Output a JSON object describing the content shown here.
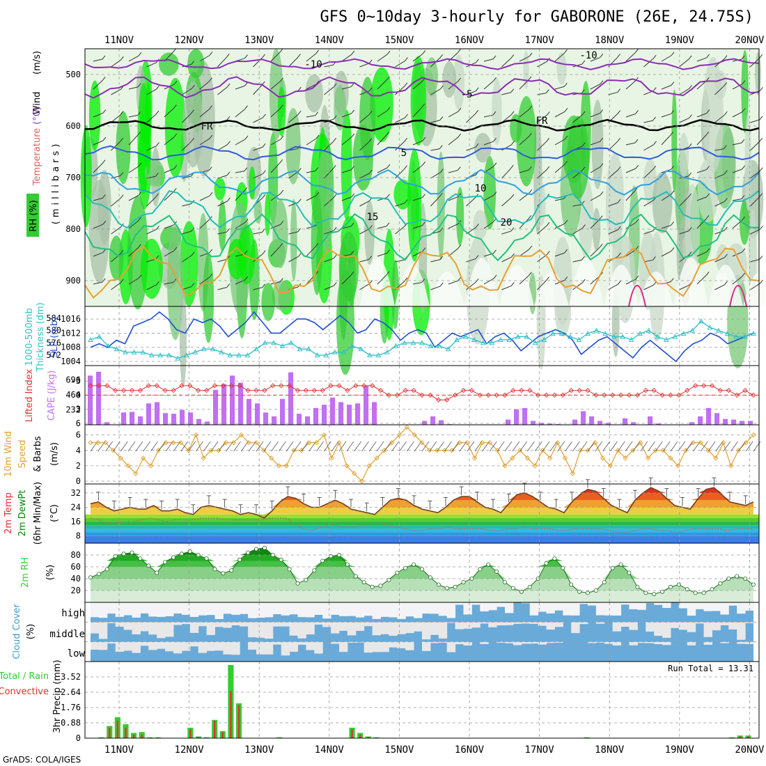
{
  "title": "GFS 0~10day 3-hourly for GABORONE (26E, 24.75S)",
  "credit": "GrADS: COLA/IGES",
  "dates": [
    "11NOV",
    "12NOV",
    "13NOV",
    "14NOV",
    "15NOV",
    "16NOV",
    "17NOV",
    "18NOV",
    "19NOV",
    "20NOV"
  ],
  "colors": {
    "rh_green": "#33cc33",
    "rh_bright": "#00ee00",
    "slp": "#1f4fd0",
    "thickness": "#33c0c8",
    "lifted_index": "#e0302e",
    "cape": "#c070f0",
    "wind_speed": "#e0a030",
    "rain_total": "#33cc33",
    "rain_convective": "#e8302e",
    "cloud": "#6aaad8",
    "cloud_clear": "#e8e8e8"
  },
  "panels": {
    "upper": {
      "label_wind": "Wind",
      "label_wind_unit": "(m/s)",
      "label_temp": "Temperature",
      "label_temp_unit": "(°C)",
      "label_rh": "RH (%)",
      "label_mb": "(millibars)",
      "contour_labels": {
        "m10a": "-10",
        "m10b": "-10",
        "m5": "-5",
        "fr1": "FR",
        "fr2": "FR",
        "p5": "5",
        "p10": "10",
        "p15": "15",
        "p20": "20"
      }
    },
    "slp": {
      "label1": "1000-500mb",
      "label2": "Thickness (dm)",
      "label3": "SLP (mb)"
    },
    "li": {
      "label1": "Lifted Index",
      "label2": "CAPE (J/kg)"
    },
    "wind10": {
      "label1": "10m Wind",
      "label2": "Speed",
      "label3": "& Barbs",
      "unit": "(m/s)"
    },
    "temp2m": {
      "label1": "2m Temp",
      "label2": "2m DewPt",
      "label3": "(6hr Min/Max)",
      "unit": "(°C)"
    },
    "rh2m": {
      "label1": "2m RH",
      "unit": "(%)"
    },
    "cloud": {
      "label1": "Cloud Cover",
      "unit": "(%)",
      "high": "high",
      "middle": "middle",
      "low": "low"
    },
    "precip": {
      "label1": "Total / Rain",
      "label2": "Convective",
      "axis": "3hr Precip (mm)",
      "run_total": "Run Total = 13.31"
    }
  },
  "chart_data": [
    {
      "type": "heatmap",
      "name": "Upper-air cross section",
      "y_axis": "pressure (mb)",
      "ylim": [
        950,
        450
      ],
      "yticks": [
        500,
        600,
        700,
        800,
        900
      ],
      "x": "11NOV-20NOV",
      "fields": [
        "RH (%)",
        "Temperature (°C)",
        "Wind (m/s)"
      ],
      "contours": [
        "-10",
        "-5",
        "FR",
        "5",
        "10",
        "15",
        "20"
      ]
    },
    {
      "type": "line",
      "name": "SLP / Thickness",
      "ylim_left": [
        1004,
        1018
      ],
      "yticks_left": [
        1004,
        1008,
        1012,
        1016
      ],
      "ylim_right": [
        570,
        586
      ],
      "yticks_right": [
        572,
        576,
        580,
        584
      ],
      "series": [
        {
          "name": "SLP (mb)",
          "values": [
            1008,
            1009,
            1008,
            1010,
            1009,
            1014,
            1015,
            1016,
            1018,
            1016,
            1013,
            1012,
            1016,
            1015,
            1016,
            1014,
            1011,
            1013,
            1015,
            1018,
            1015,
            1012,
            1012,
            1014,
            1016,
            1016,
            1015,
            1013,
            1015,
            1017,
            1015,
            1012,
            1013,
            1016,
            1015,
            1013,
            1010,
            1012,
            1013,
            1012,
            1008,
            1010,
            1012,
            1011,
            1012,
            1013,
            1009,
            1011,
            1012,
            1010,
            1007,
            1009,
            1011,
            1012,
            1013,
            1012,
            1010,
            1006,
            1008,
            1010,
            1011,
            1009,
            1007,
            1005,
            1008,
            1010,
            1008,
            1006,
            1004,
            1007,
            1009,
            1010,
            1012,
            1011,
            1009,
            1010,
            1011,
            1012
          ]
        },
        {
          "name": "1000-500mb Thickness (dm)",
          "values": [
            577,
            578,
            575,
            574,
            573,
            573,
            573,
            572,
            572,
            572,
            571,
            572,
            573,
            574,
            574,
            573,
            572,
            572,
            572,
            574,
            576,
            576,
            575,
            576,
            574,
            574,
            572,
            572,
            573,
            573,
            575,
            574,
            572,
            572,
            573,
            575,
            576,
            576,
            576,
            575,
            575,
            574,
            577,
            578,
            577,
            576,
            576,
            577,
            577,
            578,
            578,
            576,
            577,
            579,
            579,
            578,
            577,
            579,
            580,
            579,
            578,
            578,
            577,
            579,
            580,
            578,
            577,
            578,
            579,
            580,
            583,
            581,
            580,
            579,
            578,
            578,
            579
          ]
        }
      ]
    },
    {
      "type": "bar",
      "name": "Lifted Index / CAPE",
      "ylim_li": [
        6,
        -6
      ],
      "yticks_li": [
        -3,
        0,
        3,
        6
      ],
      "yticks_cape": [
        232,
        464,
        696
      ],
      "series": [
        {
          "name": "CAPE (J/kg)",
          "values": [
            760,
            820,
            40,
            0,
            190,
            200,
            130,
            330,
            350,
            180,
            170,
            230,
            190,
            90,
            50,
            540,
            630,
            760,
            650,
            400,
            330,
            190,
            130,
            400,
            810,
            170,
            130,
            260,
            310,
            420,
            350,
            310,
            330,
            600,
            350,
            0,
            0,
            0,
            0,
            0,
            60,
            130,
            70,
            10,
            0,
            0,
            0,
            0,
            0,
            0,
            80,
            240,
            260,
            60,
            30,
            20,
            10,
            0,
            80,
            210,
            130,
            60,
            30,
            0,
            100,
            40,
            0,
            130,
            20,
            0,
            0,
            0,
            40,
            130,
            260,
            180,
            90,
            80,
            60,
            60
          ]
        },
        {
          "name": "Lifted Index",
          "values": [
            -2,
            -2,
            -2,
            -1,
            -1,
            -1,
            -1,
            -2,
            -2,
            -1,
            -1,
            -2,
            -2,
            -1,
            -1,
            -2,
            -2,
            -2,
            -2,
            -1,
            -1,
            -1,
            -2,
            -2,
            -2,
            -1,
            -1,
            -1,
            -1,
            -2,
            -2,
            -1,
            -2,
            -2,
            -2,
            -1,
            0,
            0,
            -1,
            -1,
            0,
            0,
            1,
            1,
            0,
            -1,
            -1,
            0,
            0,
            0,
            0,
            -1,
            -1,
            -1,
            0,
            0,
            0,
            0,
            -1,
            -1,
            -1,
            0,
            0,
            0,
            0,
            0,
            0,
            -1,
            -1,
            0,
            0,
            0,
            -1,
            -2,
            -2,
            -2,
            -1,
            -1,
            0,
            -1,
            0
          ]
        }
      ]
    },
    {
      "type": "line",
      "name": "10m Wind Speed",
      "ylim": [
        0,
        7
      ],
      "yticks": [
        0,
        2,
        4,
        6
      ],
      "series": [
        {
          "name": "Speed (m/s)",
          "values": [
            5,
            5,
            5,
            4,
            3,
            2,
            1,
            3,
            2,
            4,
            5,
            5,
            5,
            4,
            6,
            3,
            4,
            4,
            5,
            5,
            6,
            5,
            5,
            4,
            3,
            2,
            2,
            4,
            4,
            5,
            5,
            6,
            3,
            5,
            2,
            1,
            0,
            2,
            3,
            4,
            5,
            6,
            7,
            6,
            5,
            4,
            4,
            4,
            4,
            5,
            5,
            3,
            5,
            5,
            4,
            2,
            3,
            4,
            3,
            2,
            4,
            3,
            5,
            3,
            1,
            4,
            4,
            5,
            3,
            2,
            4,
            3,
            4,
            5,
            3,
            4,
            4,
            3,
            2,
            4,
            5,
            5,
            4,
            3,
            5,
            2,
            4,
            5,
            6
          ]
        }
      ]
    },
    {
      "type": "area",
      "name": "2m Temp / DewPt",
      "ylim": [
        4,
        37
      ],
      "yticks": [
        8,
        16,
        24,
        32
      ],
      "series": [
        {
          "name": "2m Temp (°C)",
          "values": [
            26,
            27,
            24,
            22,
            23,
            24,
            23,
            23,
            25,
            22,
            22,
            23,
            21,
            20,
            24,
            25,
            24,
            23,
            22,
            20,
            21,
            20,
            18,
            22,
            27,
            30,
            29,
            26,
            24,
            24,
            26,
            28,
            26,
            23,
            22,
            21,
            20,
            24,
            28,
            29,
            28,
            25,
            23,
            22,
            21,
            24,
            28,
            30,
            30,
            27,
            24,
            23,
            21,
            26,
            31,
            32,
            30,
            27,
            24,
            23,
            21,
            27,
            31,
            34,
            33,
            29,
            25,
            23,
            21,
            28,
            32,
            35,
            33,
            29,
            25,
            24,
            23,
            29,
            34,
            35,
            31,
            27,
            26,
            25,
            27
          ]
        },
        {
          "name": "2m DewPt (°C)",
          "values": [
            18,
            17,
            15,
            15,
            16,
            16,
            17,
            18,
            17,
            16,
            17,
            17,
            17,
            18,
            18,
            18,
            17,
            17,
            17,
            17,
            17,
            18,
            18,
            18,
            15,
            12,
            11,
            13,
            14,
            14,
            13,
            13,
            14,
            14,
            14,
            14,
            13,
            12,
            11,
            11,
            12,
            12,
            13,
            12,
            12,
            12,
            12,
            11,
            11,
            12,
            12,
            13,
            12,
            12,
            12,
            11,
            11,
            12,
            12,
            12,
            12,
            11,
            10,
            10,
            11,
            12,
            12,
            11,
            11,
            10,
            11,
            12,
            12,
            12,
            12,
            11,
            12,
            12,
            12
          ]
        }
      ]
    },
    {
      "type": "area",
      "name": "2m RH",
      "ylim": [
        0,
        100
      ],
      "yticks": [
        20,
        40,
        60,
        80
      ],
      "series": [
        {
          "name": "2m RH (%)",
          "values": [
            42,
            48,
            56,
            78,
            82,
            84,
            74,
            62,
            50,
            68,
            76,
            82,
            86,
            80,
            74,
            56,
            49,
            54,
            72,
            84,
            90,
            92,
            80,
            72,
            56,
            32,
            38,
            54,
            70,
            78,
            80,
            64,
            44,
            34,
            26,
            28,
            38,
            50,
            58,
            64,
            56,
            42,
            30,
            24,
            26,
            34,
            40,
            56,
            64,
            52,
            34,
            24,
            18,
            26,
            40,
            66,
            74,
            58,
            30,
            18,
            16,
            20,
            34,
            58,
            64,
            50,
            26,
            16,
            14,
            18,
            26,
            30,
            22,
            16,
            16,
            22,
            32,
            40,
            44,
            40,
            30
          ]
        }
      ]
    },
    {
      "type": "heatmap",
      "name": "Cloud Cover",
      "rows": [
        "high",
        "middle",
        "low"
      ],
      "ylim": [
        0,
        100
      ]
    },
    {
      "type": "bar",
      "name": "3hr Precip",
      "ylim": [
        0,
        4.4
      ],
      "yticks": [
        0,
        0.88,
        1.76,
        2.64,
        3.52
      ],
      "run_total": 13.31,
      "series": [
        {
          "name": "Total",
          "values": [
            0,
            0.05,
            0.7,
            1.2,
            0.8,
            0.3,
            0.35,
            0.05,
            0.05,
            0,
            0,
            0,
            0.6,
            0.1,
            0.05,
            1.05,
            0.4,
            4.2,
            2.0,
            0,
            0,
            0,
            0,
            0.05,
            0,
            0,
            0,
            0,
            0,
            0,
            0,
            0,
            0.6,
            0.3,
            0.1,
            0.05,
            0,
            0,
            0,
            0,
            0,
            0,
            0,
            0,
            0,
            0,
            0,
            0,
            0,
            0,
            0,
            0,
            0,
            0,
            0,
            0,
            0,
            0,
            0,
            0,
            0,
            0.05,
            0,
            0,
            0,
            0,
            0,
            0,
            0,
            0,
            0,
            0,
            0,
            0,
            0,
            0,
            0,
            0,
            0,
            0.05,
            0.15,
            0.15
          ]
        },
        {
          "name": "Convective",
          "values": [
            0,
            0.03,
            0.6,
            1.0,
            0.6,
            0.2,
            0.2,
            0.03,
            0.03,
            0,
            0,
            0,
            0.5,
            0.05,
            0.03,
            1.0,
            0.35,
            2.7,
            1.9,
            0,
            0,
            0,
            0,
            0.03,
            0,
            0,
            0,
            0,
            0,
            0,
            0,
            0,
            0.5,
            0.2,
            0.05,
            0.03,
            0,
            0,
            0,
            0,
            0,
            0,
            0,
            0,
            0,
            0,
            0,
            0,
            0,
            0,
            0,
            0,
            0,
            0,
            0,
            0,
            0,
            0,
            0,
            0,
            0,
            0.03,
            0,
            0,
            0,
            0,
            0,
            0,
            0,
            0,
            0,
            0,
            0,
            0,
            0,
            0,
            0,
            0,
            0,
            0.03,
            0.1,
            0.1
          ]
        }
      ]
    }
  ]
}
